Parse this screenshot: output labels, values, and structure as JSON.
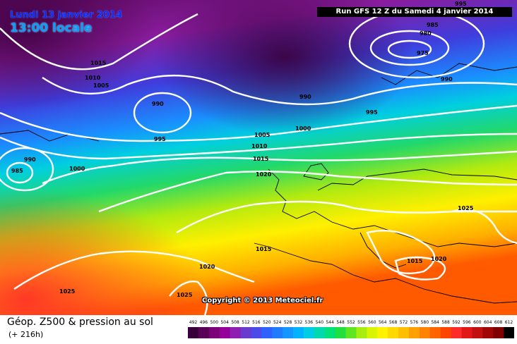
{
  "header": {
    "date": "Lundi 13 janvier 2014",
    "local_time": "13:00 locale",
    "run": "Run GFS 12 Z du Samedi 4 janvier 2014"
  },
  "map": {
    "copyright": "Copyright © 2013 Meteociel.fr",
    "isobar_labels": [
      "995",
      "985",
      "980",
      "975",
      "990",
      "1015",
      "1010",
      "1005",
      "990",
      "990",
      "995",
      "1000",
      "1005",
      "1010",
      "1015",
      "1020",
      "995",
      "990",
      "985",
      "1000",
      "1025",
      "1025",
      "1015",
      "1020",
      "1020",
      "1015",
      "1025"
    ],
    "colors": {
      "low": "#7a0f78",
      "mid": "#1d7fff",
      "high": "#ff8d00",
      "isobar": "#ffffff"
    }
  },
  "footer": {
    "title": "Géop. Z500 & pression au sol",
    "subtitle": "(+ 216h)"
  },
  "scale": {
    "ticks": [
      "492",
      "496",
      "500",
      "504",
      "508",
      "512",
      "516",
      "520",
      "524",
      "528",
      "532",
      "536",
      "540",
      "544",
      "548",
      "552",
      "556",
      "560",
      "564",
      "568",
      "572",
      "576",
      "580",
      "584",
      "588",
      "592",
      "596",
      "600",
      "604",
      "608",
      "612"
    ],
    "colors": [
      "#3a0039",
      "#5a0057",
      "#7a0078",
      "#96009a",
      "#8d1fb3",
      "#6a3bcf",
      "#4a4be8",
      "#2f61ff",
      "#1f7cff",
      "#1495ff",
      "#00b2ff",
      "#00cce6",
      "#00d9b0",
      "#00e07a",
      "#20e040",
      "#60e620",
      "#a6ee10",
      "#d8f400",
      "#fff200",
      "#ffd800",
      "#ffbe00",
      "#ffa000",
      "#ff8200",
      "#ff6400",
      "#ff4400",
      "#ff2a2a",
      "#e01818",
      "#c01010",
      "#a00808",
      "#800000",
      "#000000"
    ]
  }
}
